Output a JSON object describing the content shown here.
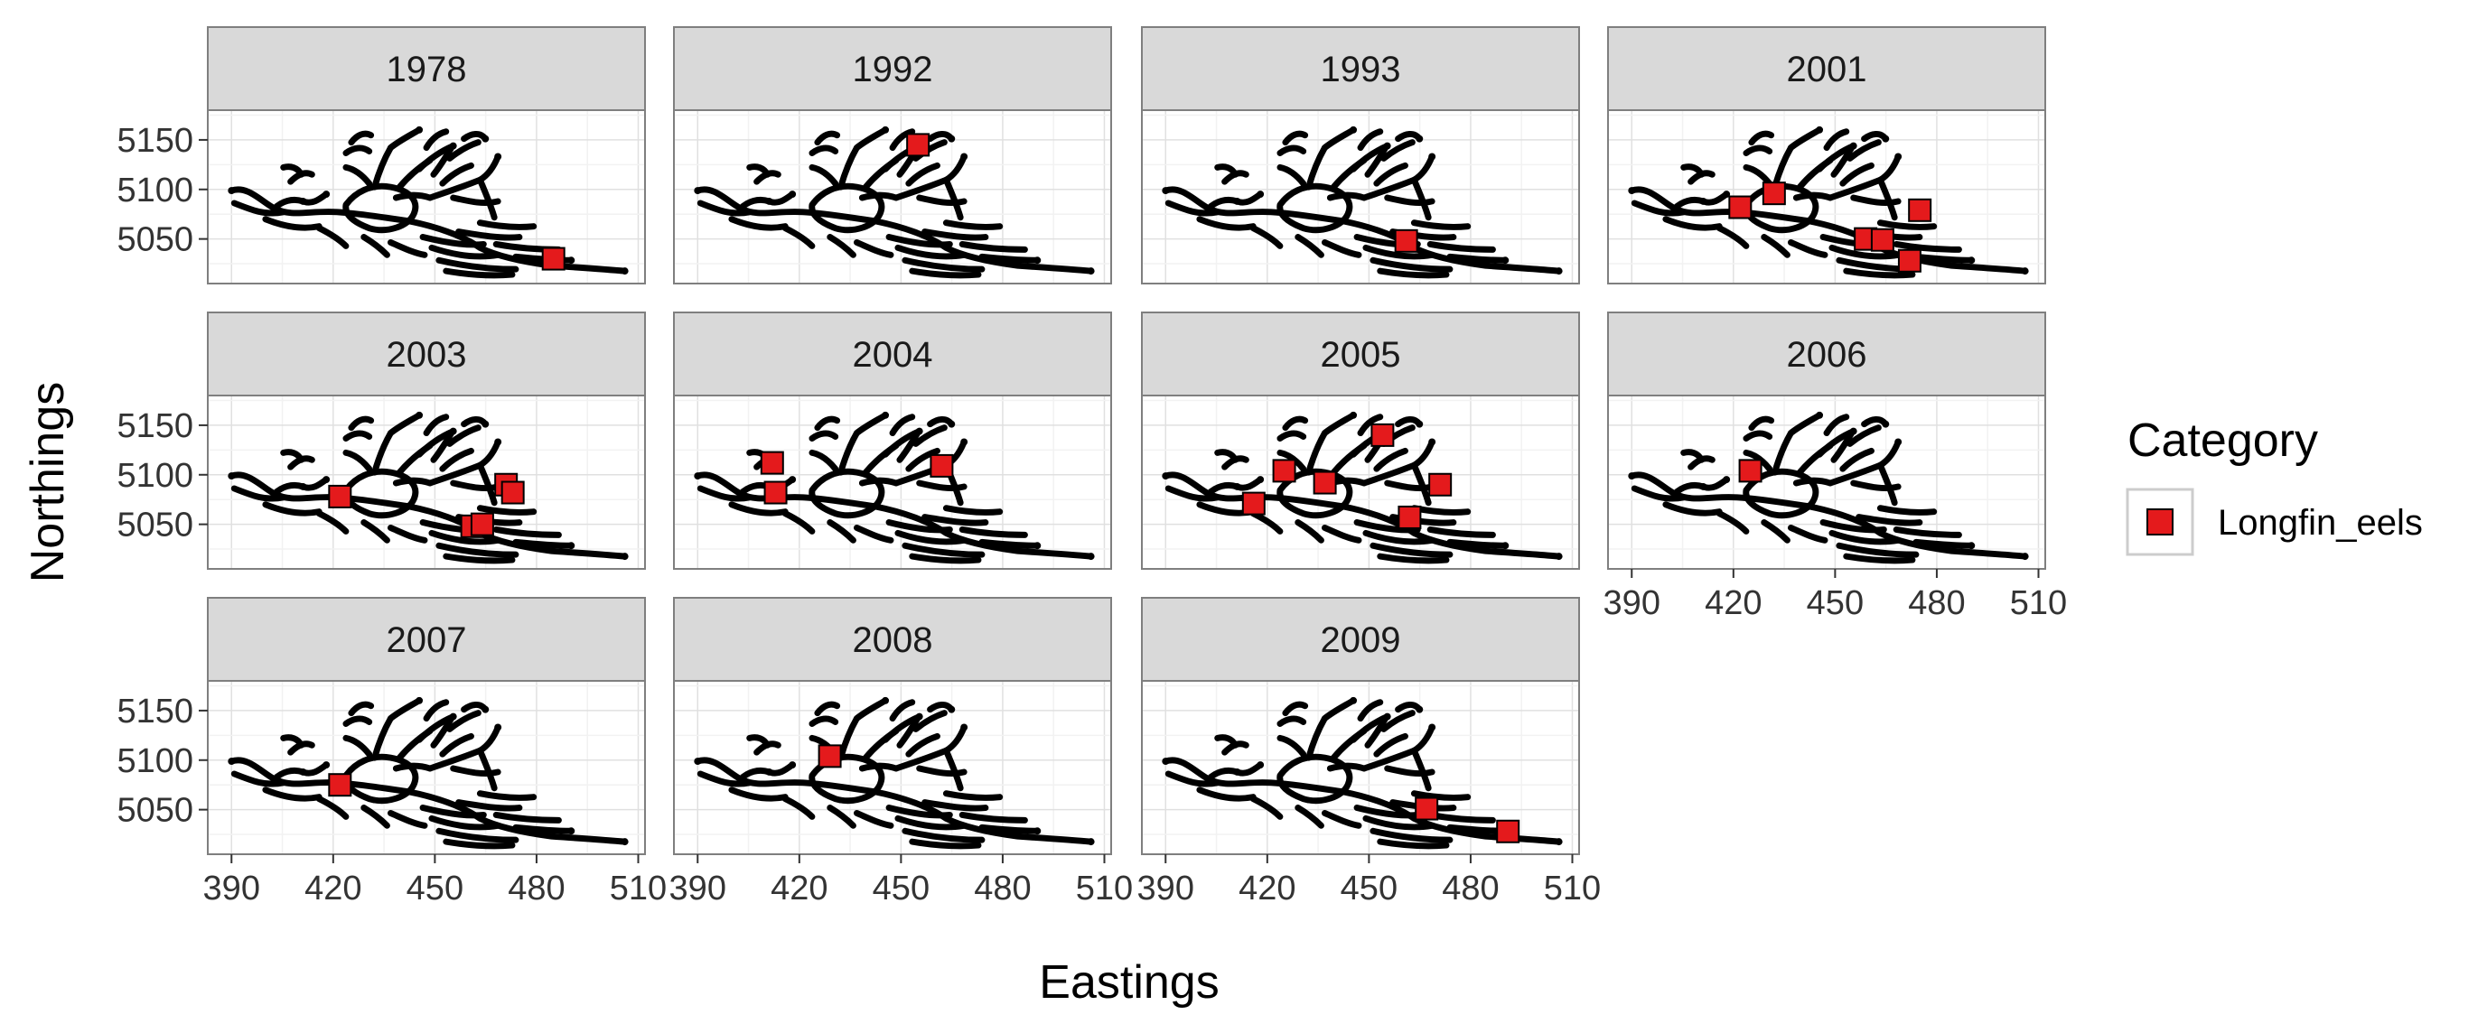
{
  "chart_data": {
    "type": "scatter",
    "title": "",
    "xlabel": "Eastings",
    "ylabel": "Northings",
    "xlim": [
      383,
      512
    ],
    "ylim": [
      5005,
      5180
    ],
    "x_ticks": [
      390,
      420,
      450,
      480,
      510
    ],
    "y_ticks": [
      5050,
      5100,
      5150
    ],
    "grid": true,
    "facets": [
      "1978",
      "1992",
      "1993",
      "2001",
      "2003",
      "2004",
      "2005",
      "2006",
      "2007",
      "2008",
      "2009"
    ],
    "legend": {
      "title": "Category",
      "position": "right",
      "entries": [
        {
          "label": "Longfin_eels",
          "color": "#e41a1c"
        }
      ]
    },
    "background_layer": "river network (black points)",
    "series": [
      {
        "name": "Longfin_eels",
        "color": "#e41a1c",
        "points": [
          {
            "facet": "1978",
            "x": 485,
            "y": 5030
          },
          {
            "facet": "1992",
            "x": 455,
            "y": 5145
          },
          {
            "facet": "1993",
            "x": 461,
            "y": 5048
          },
          {
            "facet": "2001",
            "x": 422,
            "y": 5082
          },
          {
            "facet": "2001",
            "x": 432,
            "y": 5096
          },
          {
            "facet": "2001",
            "x": 459,
            "y": 5050
          },
          {
            "facet": "2001",
            "x": 464,
            "y": 5049
          },
          {
            "facet": "2001",
            "x": 475,
            "y": 5079
          },
          {
            "facet": "2001",
            "x": 472,
            "y": 5028
          },
          {
            "facet": "2003",
            "x": 422,
            "y": 5078
          },
          {
            "facet": "2003",
            "x": 471,
            "y": 5090
          },
          {
            "facet": "2003",
            "x": 473,
            "y": 5082
          },
          {
            "facet": "2003",
            "x": 461,
            "y": 5048
          },
          {
            "facet": "2003",
            "x": 464,
            "y": 5050
          },
          {
            "facet": "2004",
            "x": 412,
            "y": 5112
          },
          {
            "facet": "2004",
            "x": 413,
            "y": 5082
          },
          {
            "facet": "2004",
            "x": 462,
            "y": 5109
          },
          {
            "facet": "2005",
            "x": 416,
            "y": 5071
          },
          {
            "facet": "2005",
            "x": 425,
            "y": 5104
          },
          {
            "facet": "2005",
            "x": 437,
            "y": 5092
          },
          {
            "facet": "2005",
            "x": 454,
            "y": 5140
          },
          {
            "facet": "2005",
            "x": 471,
            "y": 5090
          },
          {
            "facet": "2005",
            "x": 462,
            "y": 5057
          },
          {
            "facet": "2006",
            "x": 425,
            "y": 5104
          },
          {
            "facet": "2007",
            "x": 422,
            "y": 5075
          },
          {
            "facet": "2008",
            "x": 429,
            "y": 5104
          },
          {
            "facet": "2009",
            "x": 467,
            "y": 5051
          },
          {
            "facet": "2009",
            "x": 491,
            "y": 5028
          }
        ]
      }
    ]
  }
}
